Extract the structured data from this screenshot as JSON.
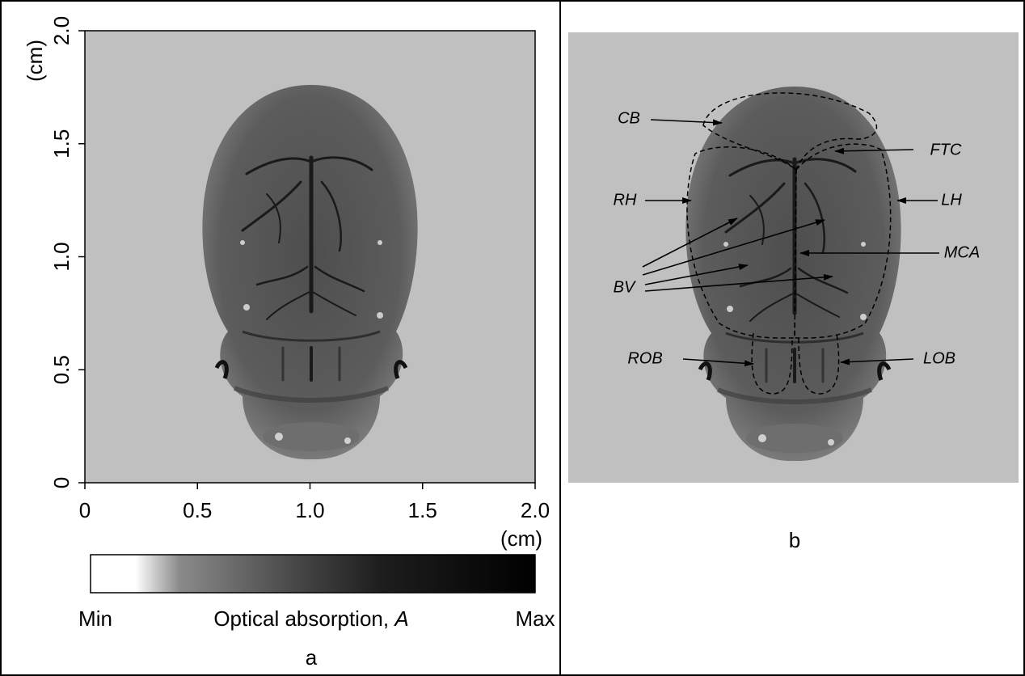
{
  "panel_a": {
    "label": "a",
    "x_unit": "(cm)",
    "y_unit": "(cm)",
    "x_ticks": [
      "0",
      "0.5",
      "1.0",
      "1.5",
      "2.0"
    ],
    "y_ticks": [
      "0",
      "0.5",
      "1.0",
      "1.5",
      "2.0"
    ],
    "colorbar": {
      "min_label": "Min",
      "max_label": "Max",
      "title": "Optical absorption,",
      "title_symbol": "A"
    }
  },
  "panel_b": {
    "label": "b",
    "annotations": [
      "CB",
      "FTC",
      "RH",
      "LH",
      "MCA",
      "BV",
      "ROB",
      "LOB"
    ]
  }
}
